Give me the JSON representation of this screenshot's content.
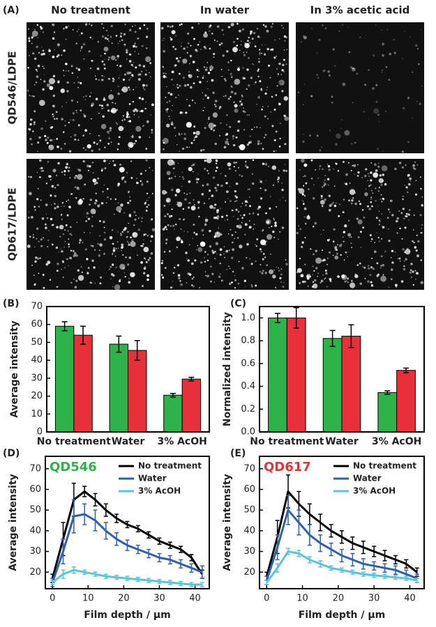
{
  "panel_a": {
    "label": "(A)",
    "columns": [
      "No treatment",
      "In water",
      "In 3% acetic acid"
    ],
    "rows": [
      "QD546/LDPE",
      "QD617/LDPE"
    ]
  },
  "chart_data": [
    {
      "type": "bar",
      "panel_label": "(B)",
      "ylabel": "Average intensity",
      "categories": [
        "No treatment",
        "Water",
        "3% AcOH"
      ],
      "series": [
        {
          "color": "#2db34a",
          "values": [
            59,
            49,
            20.5
          ],
          "errors": [
            2.5,
            4.5,
            1
          ]
        },
        {
          "color": "#e8303a",
          "values": [
            54,
            45.5,
            29.5
          ],
          "errors": [
            5,
            5.5,
            1
          ]
        }
      ],
      "ylim": [
        0,
        70
      ],
      "yticks": [
        0,
        10,
        20,
        30,
        40,
        50,
        60,
        70
      ],
      "grid": false
    },
    {
      "type": "bar",
      "panel_label": "(C)",
      "ylabel": "Normalized intensity",
      "categories": [
        "No treatment",
        "Water",
        "3% AcOH"
      ],
      "series": [
        {
          "color": "#2db34a",
          "values": [
            1.0,
            0.82,
            0.345
          ],
          "errors": [
            0.04,
            0.07,
            0.015
          ]
        },
        {
          "color": "#e8303a",
          "values": [
            1.0,
            0.84,
            0.54
          ],
          "errors": [
            0.09,
            0.1,
            0.02
          ]
        }
      ],
      "ylim": [
        0,
        1.1
      ],
      "yticks": [
        {
          "value": 0,
          "label": "0.0"
        },
        0.2,
        0.4,
        0.6,
        0.8,
        {
          "value": 1,
          "label": "1.0"
        }
      ],
      "grid": false
    },
    {
      "type": "line",
      "panel_label": "(D)",
      "annotation": "QD546",
      "annotation_color": "#2db34a",
      "xlabel": "Film depth / μm",
      "ylabel": "Average intensity",
      "legend": "upper right",
      "x": [
        0,
        3,
        6,
        9,
        12,
        15,
        18,
        21,
        24,
        27,
        30,
        33,
        36,
        39,
        42
      ],
      "series": [
        {
          "name": "No treatment",
          "color": "#000000",
          "values": [
            17,
            36,
            55,
            59,
            55,
            50,
            46,
            43,
            41,
            38,
            35,
            33,
            31,
            27,
            19
          ],
          "errors": [
            2,
            8,
            8,
            2.5,
            3,
            3,
            2,
            1.5,
            1.5,
            1.5,
            1.5,
            1.5,
            1.5,
            1.5,
            2
          ]
        },
        {
          "name": "Water",
          "color": "#2e5fb0",
          "values": [
            15,
            30,
            47,
            48,
            45,
            40,
            36,
            33,
            31,
            29,
            27,
            26,
            24,
            22,
            20
          ],
          "errors": [
            2,
            6,
            8,
            5,
            5,
            4,
            3,
            2.5,
            2,
            2,
            2,
            2,
            2,
            2,
            3
          ]
        },
        {
          "name": "3% AcOH",
          "color": "#5bc4dc",
          "values": [
            15,
            19,
            21,
            20,
            19,
            18,
            17.5,
            17,
            16.5,
            16,
            15.5,
            15,
            14.5,
            14,
            14
          ],
          "errors": [
            1,
            2,
            1.5,
            1,
            1,
            1,
            1,
            1,
            1,
            1,
            1,
            1,
            1,
            1,
            1
          ]
        }
      ],
      "xlim": [
        -2,
        44
      ],
      "xticks": [
        0,
        10,
        20,
        30,
        40
      ],
      "ylim": [
        12,
        76
      ],
      "yticks": [
        20,
        30,
        40,
        50,
        60,
        70
      ],
      "grid": false
    },
    {
      "type": "line",
      "panel_label": "(E)",
      "annotation": "QD617",
      "annotation_color": "#e8303a",
      "xlabel": "Film depth / μm",
      "ylabel": "Average intensity",
      "legend": "upper right",
      "x": [
        0,
        3,
        6,
        9,
        12,
        15,
        18,
        21,
        24,
        27,
        30,
        33,
        36,
        39,
        42
      ],
      "series": [
        {
          "name": "No treatment",
          "color": "#000000",
          "values": [
            18,
            37,
            59,
            53,
            48,
            44,
            40,
            37,
            34,
            32,
            30,
            28,
            26,
            24,
            20
          ],
          "errors": [
            2,
            8,
            8,
            6,
            5,
            4,
            3,
            3,
            3,
            3,
            2.5,
            2.5,
            2,
            2,
            2
          ]
        },
        {
          "name": "Water",
          "color": "#2e5fb0",
          "values": [
            16,
            32,
            50,
            44,
            38,
            34,
            31,
            28,
            26,
            24,
            23,
            22,
            21,
            19,
            17
          ],
          "errors": [
            2,
            6,
            7,
            6,
            5,
            4,
            3,
            3,
            3,
            2.5,
            2,
            2,
            2,
            2,
            2
          ]
        },
        {
          "name": "3% AcOH",
          "color": "#5bc4dc",
          "values": [
            15,
            22,
            30,
            29,
            26,
            24,
            22,
            21,
            20,
            19,
            18.5,
            18,
            17.5,
            17,
            16
          ],
          "errors": [
            1,
            2,
            1.5,
            1.5,
            1.5,
            1.5,
            1,
            1,
            1,
            1,
            1,
            1,
            1,
            1,
            1
          ]
        }
      ],
      "xlim": [
        -2,
        44
      ],
      "xticks": [
        0,
        10,
        20,
        30,
        40
      ],
      "ylim": [
        12,
        76
      ],
      "yticks": [
        20,
        30,
        40,
        50,
        60,
        70
      ],
      "grid": false
    }
  ]
}
